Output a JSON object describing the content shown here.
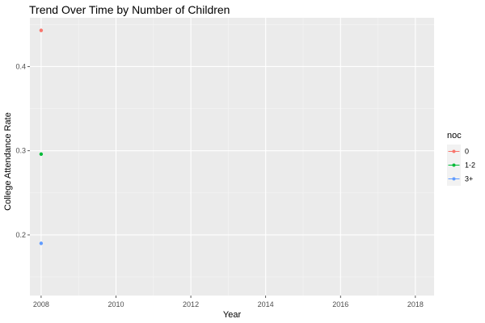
{
  "chart_data": {
    "type": "scatter",
    "title": "Trend Over Time by Number of Children",
    "xlabel": "Year",
    "ylabel": "College Attendance Rate",
    "xlim": [
      2007.7,
      2018.5
    ],
    "ylim": [
      0.128,
      0.458
    ],
    "x_ticks": [
      2008,
      2010,
      2012,
      2014,
      2016,
      2018
    ],
    "x_tick_labels": [
      "2008",
      "2010",
      "2012",
      "2014",
      "2016",
      "2018"
    ],
    "y_ticks": [
      0.2,
      0.3,
      0.4
    ],
    "y_tick_labels": [
      "0.2",
      "0.3",
      "0.4"
    ],
    "grid": true,
    "legend": {
      "title": "noc",
      "position": "right"
    },
    "series": [
      {
        "name": "0",
        "color": "#F8766D",
        "points": [
          {
            "x": 2008,
            "y": 0.443
          }
        ]
      },
      {
        "name": "1-2",
        "color": "#00BA38",
        "points": [
          {
            "x": 2008,
            "y": 0.296
          }
        ]
      },
      {
        "name": "3+",
        "color": "#619CFF",
        "points": [
          {
            "x": 2008,
            "y": 0.19
          }
        ]
      }
    ]
  }
}
